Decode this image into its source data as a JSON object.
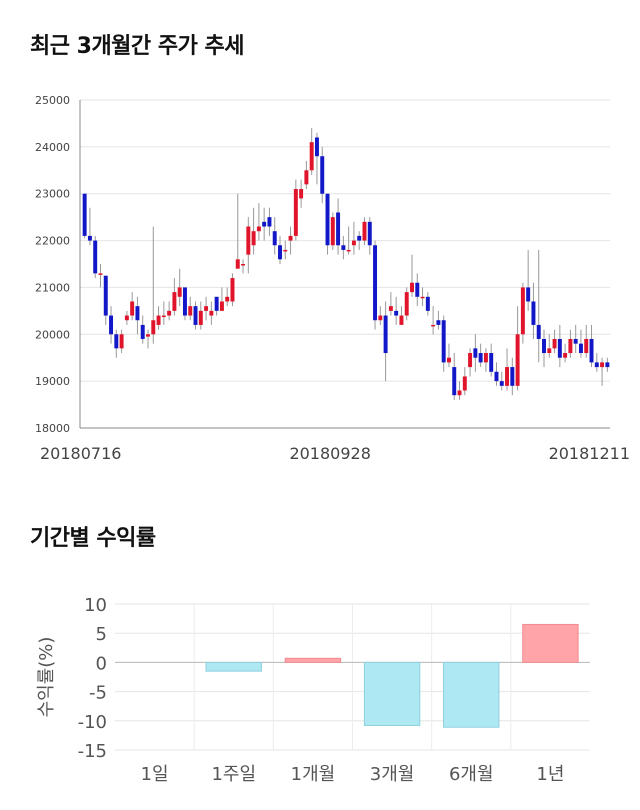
{
  "section1_title": "최근 3개월간 주가 추세",
  "section2_title": "기간별 수익률",
  "chart_data": [
    {
      "type": "candlestick",
      "title": "",
      "ylim": [
        18000,
        25000
      ],
      "yticks": [
        "25000",
        "24000",
        "23000",
        "22000",
        "21000",
        "20000",
        "19000",
        "18000"
      ],
      "xtick_labels": [
        "20180716",
        "20180928",
        "20181211"
      ],
      "grid": true,
      "up_color": "#e0142b",
      "down_color": "#1218c8",
      "candles": [
        [
          23000,
          22100,
          23000,
          22050
        ],
        [
          22100,
          22000,
          22700,
          21900
        ],
        [
          22000,
          21300,
          22100,
          21200
        ],
        [
          21300,
          21300,
          21500,
          21000
        ],
        [
          21250,
          20400,
          21250,
          20200
        ],
        [
          20400,
          20000,
          20600,
          19800
        ],
        [
          20000,
          19700,
          20100,
          19500
        ],
        [
          19700,
          20000,
          20100,
          19600
        ],
        [
          20300,
          20400,
          20500,
          20200
        ],
        [
          20400,
          20700,
          20900,
          20300
        ],
        [
          20600,
          20300,
          20800,
          20000
        ],
        [
          20200,
          19900,
          20400,
          19800
        ],
        [
          19950,
          20000,
          20100,
          19700
        ],
        [
          20000,
          20300,
          22300,
          19800
        ],
        [
          20200,
          20400,
          20600,
          20100
        ],
        [
          20400,
          20400,
          20700,
          20200
        ],
        [
          20400,
          20500,
          20700,
          20300
        ],
        [
          20500,
          20900,
          21200,
          20400
        ],
        [
          20800,
          21000,
          21400,
          20600
        ],
        [
          21000,
          20400,
          21000,
          20300
        ],
        [
          20400,
          20600,
          20800,
          20300
        ],
        [
          20600,
          20200,
          20700,
          20100
        ],
        [
          20200,
          20500,
          20700,
          20100
        ],
        [
          20500,
          20600,
          20800,
          20300
        ],
        [
          20400,
          20500,
          20700,
          20200
        ],
        [
          20800,
          20500,
          20800,
          20400
        ],
        [
          20500,
          20700,
          21000,
          20500
        ],
        [
          20700,
          20800,
          21000,
          20600
        ],
        [
          20700,
          21200,
          21300,
          20600
        ],
        [
          21400,
          21600,
          23000,
          21400
        ],
        [
          21500,
          21500,
          21600,
          21300
        ],
        [
          21700,
          22300,
          22500,
          21300
        ],
        [
          21900,
          22200,
          22700,
          21700
        ],
        [
          22200,
          22300,
          22800,
          22000
        ],
        [
          22400,
          22300,
          22700,
          22000
        ],
        [
          22500,
          22300,
          22700,
          22100
        ],
        [
          22200,
          21900,
          22500,
          21700
        ],
        [
          21900,
          21600,
          22100,
          21500
        ],
        [
          21800,
          21800,
          22000,
          21600
        ],
        [
          22000,
          22100,
          22300,
          21700
        ],
        [
          22100,
          23100,
          23300,
          22000
        ],
        [
          22900,
          23100,
          23300,
          22700
        ],
        [
          23200,
          23500,
          23700,
          23100
        ],
        [
          23500,
          24100,
          24400,
          23400
        ],
        [
          24200,
          23800,
          24300,
          23200
        ],
        [
          23800,
          23000,
          24000,
          22800
        ],
        [
          23000,
          21900,
          23000,
          21700
        ],
        [
          21900,
          22500,
          22600,
          21800
        ],
        [
          22600,
          21900,
          22900,
          21700
        ],
        [
          21900,
          21800,
          22100,
          21600
        ],
        [
          21800,
          21800,
          22300,
          21700
        ],
        [
          21900,
          22000,
          22400,
          21700
        ],
        [
          22100,
          22000,
          22200,
          21800
        ],
        [
          22000,
          22400,
          22500,
          21900
        ],
        [
          22400,
          21900,
          22500,
          21700
        ],
        [
          21900,
          20300,
          22000,
          20100
        ],
        [
          20300,
          20400,
          20600,
          20200
        ],
        [
          20400,
          19600,
          20700,
          19000
        ],
        [
          20500,
          20600,
          20900,
          20400
        ],
        [
          20500,
          20400,
          20800,
          20200
        ],
        [
          20200,
          20400,
          20600,
          20200
        ],
        [
          20400,
          20900,
          21000,
          20300
        ],
        [
          20900,
          21100,
          21700,
          20800
        ],
        [
          21100,
          20800,
          21300,
          20600
        ],
        [
          20800,
          20800,
          21000,
          20600
        ],
        [
          20800,
          20500,
          20900,
          20400
        ],
        [
          20200,
          20200,
          20600,
          20000
        ],
        [
          20300,
          20200,
          20500,
          20100
        ],
        [
          20300,
          19400,
          20400,
          19200
        ],
        [
          19400,
          19500,
          19800,
          19300
        ],
        [
          19300,
          18700,
          19600,
          18600
        ],
        [
          18700,
          18800,
          19000,
          18600
        ],
        [
          18800,
          19100,
          19300,
          18700
        ],
        [
          19300,
          19600,
          19700,
          19100
        ],
        [
          19700,
          19500,
          20000,
          19200
        ],
        [
          19600,
          19400,
          19800,
          19300
        ],
        [
          19400,
          19600,
          19700,
          19200
        ],
        [
          19600,
          19200,
          19800,
          19100
        ],
        [
          19200,
          19000,
          19400,
          18900
        ],
        [
          19000,
          18900,
          19200,
          18800
        ],
        [
          18900,
          19300,
          19700,
          18800
        ],
        [
          19300,
          18900,
          19500,
          18700
        ],
        [
          18900,
          20000,
          20600,
          18800
        ],
        [
          20000,
          21000,
          21100,
          19800
        ],
        [
          21000,
          20700,
          21800,
          20500
        ],
        [
          20700,
          20200,
          21100,
          19900
        ],
        [
          20200,
          19900,
          21800,
          19400
        ],
        [
          19900,
          19600,
          20100,
          19300
        ],
        [
          19600,
          19700,
          20000,
          19500
        ],
        [
          19700,
          19900,
          20100,
          19600
        ],
        [
          19900,
          19500,
          20200,
          19300
        ],
        [
          19500,
          19600,
          19800,
          19400
        ],
        [
          19600,
          19900,
          20100,
          19500
        ],
        [
          19900,
          19800,
          20200,
          19600
        ],
        [
          19800,
          19600,
          20100,
          19500
        ],
        [
          19600,
          19900,
          20200,
          19500
        ],
        [
          19900,
          19400,
          20200,
          19300
        ],
        [
          19400,
          19300,
          19600,
          19200
        ],
        [
          19300,
          19400,
          19500,
          18900
        ],
        [
          19400,
          19300,
          19500,
          19200
        ]
      ]
    },
    {
      "type": "bar",
      "title": "",
      "ylabel": "수익률(%)",
      "ylim": [
        -15,
        10
      ],
      "yticks": [
        "10",
        "5",
        "0",
        "-5",
        "-10",
        "-15"
      ],
      "categories": [
        "1일",
        "1주일",
        "1개월",
        "3개월",
        "6개월",
        "1년"
      ],
      "values": [
        0.0,
        -1.5,
        0.7,
        -10.8,
        -11.1,
        6.5
      ],
      "positive_color": "#ffa4a8",
      "negative_color": "#aee8f3",
      "grid": true
    }
  ]
}
